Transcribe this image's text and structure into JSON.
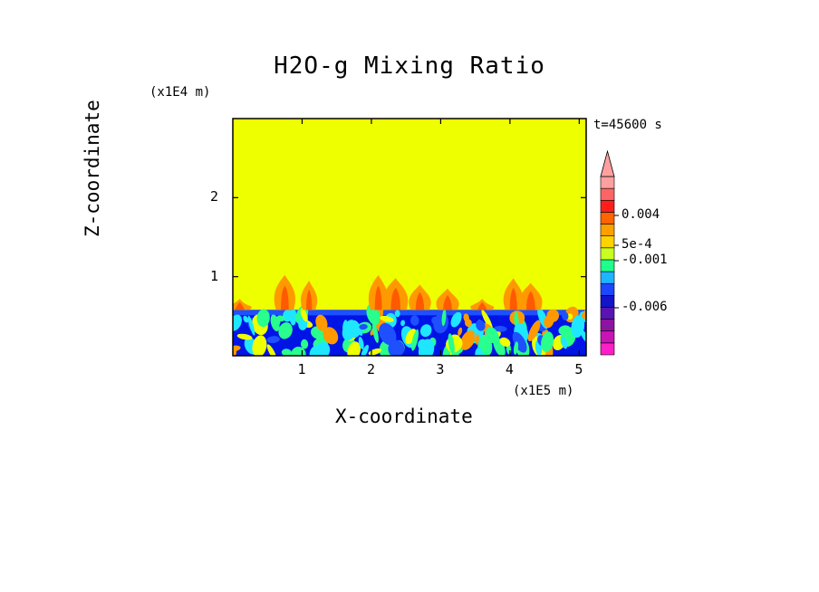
{
  "chart_data": {
    "type": "heatmap",
    "title": "H2O-g Mixing Ratio",
    "xlabel": "X-coordinate",
    "ylabel": "Z-coordinate",
    "x_scale_label": "(x1E5 m)",
    "y_scale_label": "(x1E4 m)",
    "time_label": "t=45600 s",
    "xlim": [
      0,
      5.1
    ],
    "ylim": [
      0,
      3.0
    ],
    "x_ticks": [
      1,
      2,
      3,
      4,
      5
    ],
    "y_ticks": [
      1,
      2
    ],
    "x_tick_labels": [
      "1",
      "2",
      "3",
      "4",
      "5"
    ],
    "y_tick_labels": [
      "1",
      "2"
    ],
    "background_level": "yellow (~0)",
    "mixed_layer_top": 0.58,
    "plumes": [
      {
        "x": 0.1,
        "top": 0.72
      },
      {
        "x": 0.75,
        "top": 1.02
      },
      {
        "x": 1.1,
        "top": 0.95
      },
      {
        "x": 2.1,
        "top": 1.02
      },
      {
        "x": 2.35,
        "top": 0.98
      },
      {
        "x": 2.7,
        "top": 0.9
      },
      {
        "x": 3.1,
        "top": 0.85
      },
      {
        "x": 3.6,
        "top": 0.72
      },
      {
        "x": 4.05,
        "top": 0.98
      },
      {
        "x": 4.3,
        "top": 0.92
      }
    ],
    "colorbar": {
      "colors": [
        "#ff1ec8",
        "#c814b4",
        "#8c14a0",
        "#5a14b4",
        "#1414c8",
        "#1e46ff",
        "#1eb4ff",
        "#1eff8c",
        "#c8ff1e",
        "#ffd200",
        "#ffa000",
        "#ff6400",
        "#ff1e1e",
        "#ff6464",
        "#ffa0a0"
      ],
      "labels": [
        "0.004",
        "5e-4",
        "-0.001",
        "-0.006"
      ]
    }
  },
  "colors": {
    "yellow": "#eeff00",
    "orange": "#ff9900",
    "red_orange": "#ff5a00",
    "blue_dark": "#0014e6",
    "blue": "#1e50ff",
    "cyan": "#1ee6ff",
    "green": "#28ff8c"
  }
}
